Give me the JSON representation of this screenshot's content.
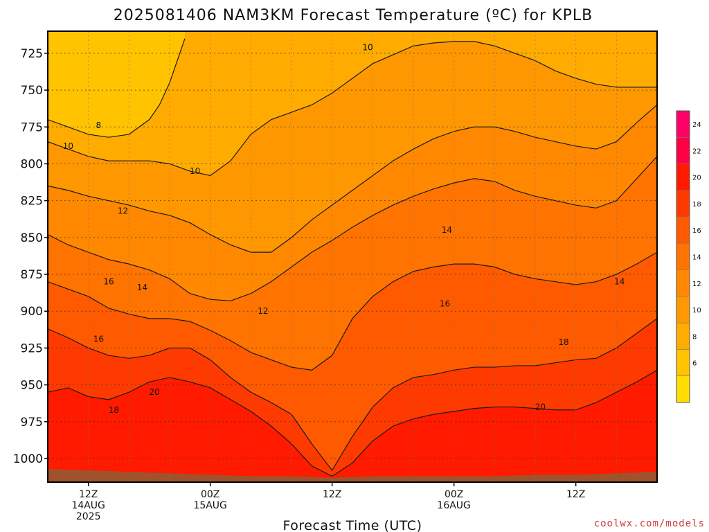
{
  "title": "2025081406 NAM3KM Forecast Temperature (ºC) for KPLB",
  "credit": "coolwx.com/models",
  "chart_data": {
    "type": "heatmap",
    "title": "2025081406 NAM3KM Forecast Temperature (ºC) for KPLB",
    "xlabel": "Forecast Time (UTC)",
    "ylabel": "",
    "xlim_hours": [
      8,
      68
    ],
    "ylim_hpa": [
      1016,
      710
    ],
    "y_ticks": [
      725,
      750,
      775,
      800,
      825,
      850,
      875,
      900,
      925,
      950,
      975,
      1000
    ],
    "x_ticks": [
      {
        "hour": 12,
        "lines": [
          "12Z",
          "14AUG",
          "2025"
        ]
      },
      {
        "hour": 24,
        "lines": [
          "00Z",
          "15AUG"
        ]
      },
      {
        "hour": 36,
        "lines": [
          "12Z"
        ]
      },
      {
        "hour": 48,
        "lines": [
          "00Z",
          "16AUG"
        ]
      },
      {
        "hour": 60,
        "lines": [
          "12Z"
        ]
      }
    ],
    "grid": true,
    "colorbar": {
      "levels": [
        4,
        6,
        8,
        10,
        12,
        14,
        16,
        18,
        20,
        22,
        24,
        26
      ],
      "labels": [
        6,
        8,
        10,
        12,
        14,
        16,
        18,
        20,
        22,
        24
      ],
      "colors": [
        "#ffdd00",
        "#ffc300",
        "#ffab00",
        "#ff9800",
        "#ff8800",
        "#ff7300",
        "#ff5a00",
        "#ff3a00",
        "#ff1a00",
        "#ff0045",
        "#ff0066"
      ]
    },
    "contour_labels": [
      {
        "text": "10",
        "hour": 39.5,
        "hpa": 721
      },
      {
        "text": "8",
        "hour": 13.0,
        "hpa": 774
      },
      {
        "text": "10",
        "hour": 10.0,
        "hpa": 788
      },
      {
        "text": "10",
        "hour": 22.5,
        "hpa": 805
      },
      {
        "text": "12",
        "hour": 15.4,
        "hpa": 832
      },
      {
        "text": "14",
        "hour": 47.3,
        "hpa": 845
      },
      {
        "text": "16",
        "hour": 14.0,
        "hpa": 880
      },
      {
        "text": "14",
        "hour": 17.3,
        "hpa": 884
      },
      {
        "text": "16",
        "hour": 47.1,
        "hpa": 895
      },
      {
        "text": "14",
        "hour": 64.3,
        "hpa": 880
      },
      {
        "text": "12",
        "hour": 29.2,
        "hpa": 900
      },
      {
        "text": "16",
        "hour": 13.0,
        "hpa": 919
      },
      {
        "text": "18",
        "hour": 58.8,
        "hpa": 921
      },
      {
        "text": "20",
        "hour": 18.5,
        "hpa": 955
      },
      {
        "text": "18",
        "hour": 14.5,
        "hpa": 967
      },
      {
        "text": "20",
        "hour": 56.5,
        "hpa": 965
      }
    ],
    "series": [
      {
        "name": "",
        "min_level": 20,
        "points": [
          [
            8,
            955
          ],
          [
            10,
            952
          ],
          [
            12,
            958
          ],
          [
            14,
            960
          ],
          [
            16,
            955
          ],
          [
            18,
            948
          ],
          [
            20,
            945
          ],
          [
            22,
            948
          ],
          [
            24,
            952
          ],
          [
            26,
            960
          ],
          [
            28,
            968
          ],
          [
            30,
            978
          ],
          [
            32,
            990
          ],
          [
            34,
            1005
          ],
          [
            36,
            1012
          ],
          [
            38,
            1003
          ],
          [
            40,
            988
          ],
          [
            42,
            978
          ],
          [
            44,
            973
          ],
          [
            46,
            970
          ],
          [
            48,
            968
          ],
          [
            50,
            966
          ],
          [
            52,
            965
          ],
          [
            54,
            965
          ],
          [
            56,
            966
          ],
          [
            58,
            967
          ],
          [
            60,
            967
          ],
          [
            62,
            962
          ],
          [
            64,
            955
          ],
          [
            66,
            948
          ],
          [
            68,
            940
          ]
        ]
      },
      {
        "name": "",
        "min_level": 18,
        "points": [
          [
            8,
            912
          ],
          [
            10,
            918
          ],
          [
            12,
            925
          ],
          [
            14,
            930
          ],
          [
            16,
            932
          ],
          [
            18,
            930
          ],
          [
            20,
            925
          ],
          [
            22,
            925
          ],
          [
            24,
            933
          ],
          [
            26,
            945
          ],
          [
            28,
            955
          ],
          [
            30,
            962
          ],
          [
            32,
            970
          ],
          [
            34,
            990
          ],
          [
            36,
            1008
          ],
          [
            38,
            985
          ],
          [
            40,
            965
          ],
          [
            42,
            952
          ],
          [
            44,
            945
          ],
          [
            46,
            943
          ],
          [
            48,
            940
          ],
          [
            50,
            938
          ],
          [
            52,
            938
          ],
          [
            54,
            937
          ],
          [
            56,
            937
          ],
          [
            58,
            935
          ],
          [
            60,
            933
          ],
          [
            62,
            932
          ],
          [
            64,
            925
          ],
          [
            66,
            915
          ],
          [
            68,
            905
          ]
        ]
      },
      {
        "name": "",
        "min_level": 16,
        "points": [
          [
            8,
            880
          ],
          [
            10,
            885
          ],
          [
            12,
            890
          ],
          [
            14,
            898
          ],
          [
            16,
            902
          ],
          [
            18,
            905
          ],
          [
            20,
            905
          ],
          [
            22,
            907
          ],
          [
            24,
            913
          ],
          [
            26,
            920
          ],
          [
            28,
            928
          ],
          [
            30,
            933
          ],
          [
            32,
            938
          ],
          [
            34,
            940
          ],
          [
            36,
            930
          ],
          [
            38,
            905
          ],
          [
            40,
            890
          ],
          [
            42,
            880
          ],
          [
            44,
            873
          ],
          [
            46,
            870
          ],
          [
            48,
            868
          ],
          [
            50,
            868
          ],
          [
            52,
            870
          ],
          [
            54,
            875
          ],
          [
            56,
            878
          ],
          [
            58,
            880
          ],
          [
            60,
            882
          ],
          [
            62,
            880
          ],
          [
            64,
            875
          ],
          [
            66,
            868
          ],
          [
            68,
            860
          ]
        ]
      },
      {
        "name": "",
        "min_level": 14,
        "points": [
          [
            8,
            848
          ],
          [
            10,
            855
          ],
          [
            12,
            860
          ],
          [
            14,
            865
          ],
          [
            16,
            868
          ],
          [
            18,
            872
          ],
          [
            20,
            878
          ],
          [
            22,
            888
          ],
          [
            24,
            892
          ],
          [
            26,
            893
          ],
          [
            28,
            888
          ],
          [
            30,
            880
          ],
          [
            32,
            870
          ],
          [
            34,
            860
          ],
          [
            36,
            852
          ],
          [
            38,
            843
          ],
          [
            40,
            835
          ],
          [
            42,
            828
          ],
          [
            44,
            822
          ],
          [
            46,
            817
          ],
          [
            48,
            813
          ],
          [
            50,
            810
          ],
          [
            52,
            812
          ],
          [
            54,
            818
          ],
          [
            56,
            822
          ],
          [
            58,
            825
          ],
          [
            60,
            828
          ],
          [
            62,
            830
          ],
          [
            64,
            825
          ],
          [
            66,
            810
          ],
          [
            68,
            795
          ]
        ]
      },
      {
        "name": "",
        "min_level": 12,
        "points": [
          [
            8,
            815
          ],
          [
            10,
            818
          ],
          [
            12,
            822
          ],
          [
            14,
            825
          ],
          [
            16,
            828
          ],
          [
            18,
            832
          ],
          [
            20,
            835
          ],
          [
            22,
            840
          ],
          [
            24,
            848
          ],
          [
            26,
            855
          ],
          [
            28,
            860
          ],
          [
            30,
            860
          ],
          [
            32,
            850
          ],
          [
            34,
            838
          ],
          [
            36,
            828
          ],
          [
            38,
            818
          ],
          [
            40,
            808
          ],
          [
            42,
            798
          ],
          [
            44,
            790
          ],
          [
            46,
            783
          ],
          [
            48,
            778
          ],
          [
            50,
            775
          ],
          [
            52,
            775
          ],
          [
            54,
            778
          ],
          [
            56,
            782
          ],
          [
            58,
            785
          ],
          [
            60,
            788
          ],
          [
            62,
            790
          ],
          [
            64,
            785
          ],
          [
            66,
            772
          ],
          [
            68,
            760
          ]
        ]
      },
      {
        "name": "",
        "min_level": 10,
        "points": [
          [
            8,
            785
          ],
          [
            10,
            790
          ],
          [
            12,
            795
          ],
          [
            14,
            798
          ],
          [
            16,
            798
          ],
          [
            18,
            798
          ],
          [
            20,
            800
          ],
          [
            22,
            805
          ],
          [
            24,
            808
          ],
          [
            26,
            798
          ],
          [
            28,
            780
          ],
          [
            30,
            770
          ],
          [
            32,
            765
          ],
          [
            34,
            760
          ],
          [
            36,
            752
          ],
          [
            38,
            742
          ],
          [
            40,
            732
          ],
          [
            42,
            726
          ],
          [
            44,
            720
          ],
          [
            46,
            718
          ],
          [
            48,
            717
          ],
          [
            50,
            717
          ],
          [
            52,
            720
          ],
          [
            54,
            725
          ],
          [
            56,
            730
          ],
          [
            58,
            737
          ],
          [
            60,
            742
          ],
          [
            62,
            746
          ],
          [
            64,
            748
          ],
          [
            66,
            748
          ],
          [
            68,
            748
          ]
        ]
      },
      {
        "name": "",
        "min_level": 8,
        "points": [
          [
            8,
            770
          ],
          [
            10,
            775
          ],
          [
            12,
            780
          ],
          [
            14,
            782
          ],
          [
            16,
            780
          ],
          [
            18,
            770
          ],
          [
            19,
            760
          ],
          [
            20,
            745
          ],
          [
            21,
            725
          ],
          [
            21.5,
            715
          ]
        ]
      }
    ]
  }
}
